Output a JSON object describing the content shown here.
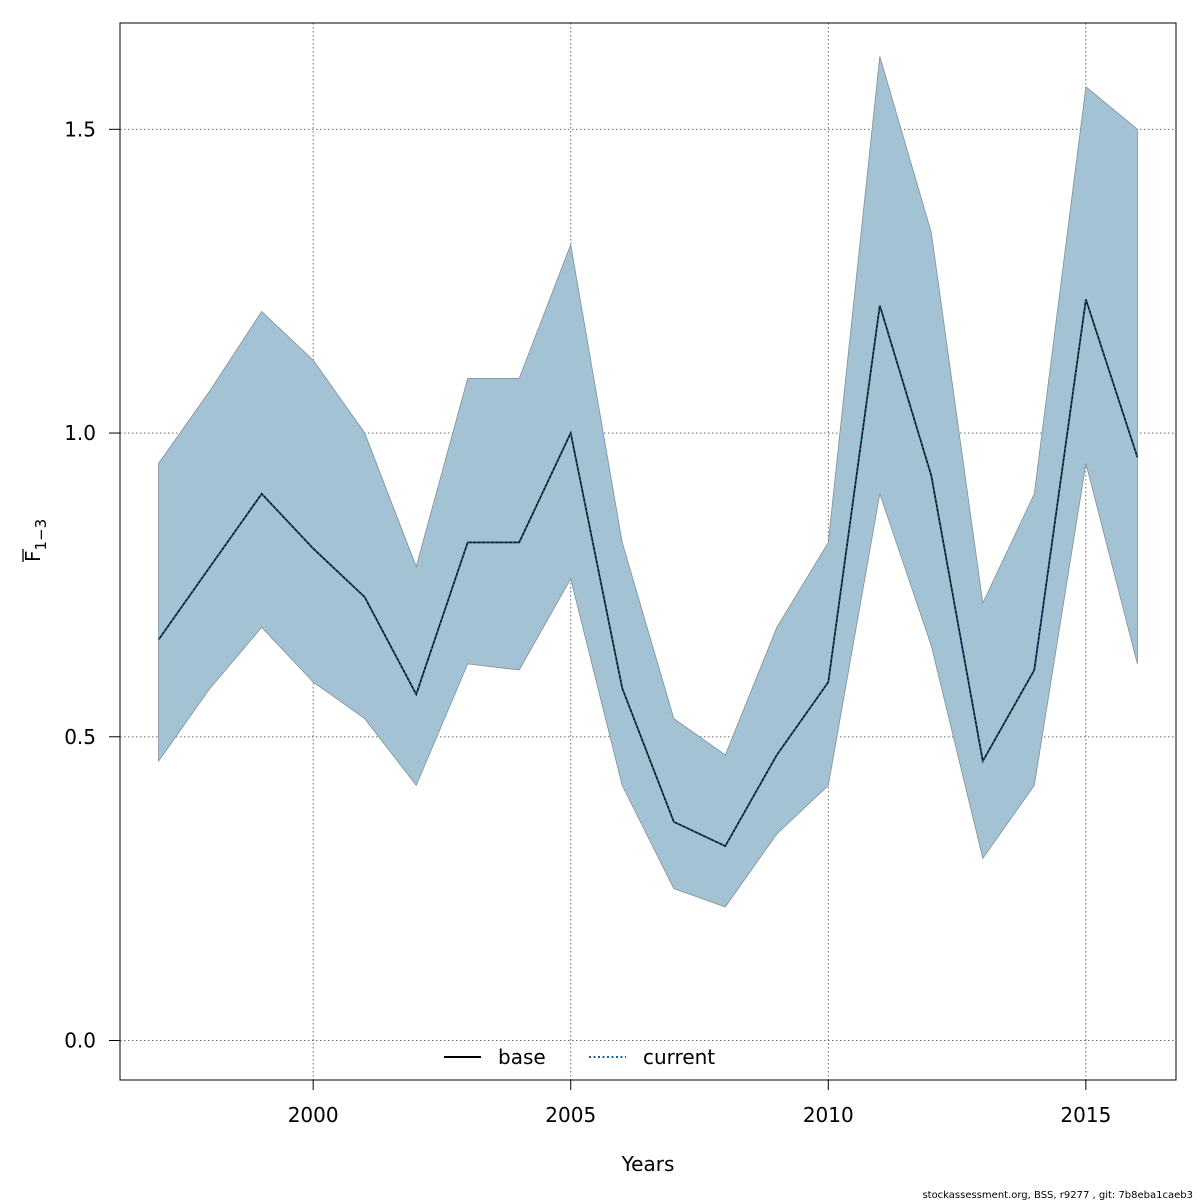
{
  "chart_data": {
    "type": "line",
    "xlabel": "Years",
    "ylabel": "F",
    "ylabel_subscript": "1−3",
    "xlim": [
      1996.25,
      2016.75
    ],
    "ylim": [
      -0.065,
      1.675
    ],
    "x_ticks": [
      2000,
      2005,
      2010,
      2015
    ],
    "x_tick_labels": [
      "2000",
      "2005",
      "2010",
      "2015"
    ],
    "y_ticks": [
      0.0,
      0.5,
      1.0,
      1.5
    ],
    "y_tick_labels": [
      "0.0",
      "0.5",
      "1.0",
      "1.5"
    ],
    "grid": true,
    "legend_position": "bottom-center",
    "x": [
      1997,
      1998,
      1999,
      2000,
      2001,
      2002,
      2003,
      2004,
      2005,
      2006,
      2007,
      2008,
      2009,
      2010,
      2011,
      2012,
      2013,
      2014,
      2015,
      2016
    ],
    "band": {
      "color": "#a3c3d4",
      "stroke": "#7f8f96",
      "upper": [
        0.95,
        1.07,
        1.2,
        1.12,
        1.0,
        0.78,
        1.09,
        1.09,
        1.31,
        0.82,
        0.53,
        0.47,
        0.68,
        0.82,
        1.62,
        1.33,
        0.72,
        0.9,
        1.57,
        1.5
      ],
      "lower": [
        0.46,
        0.58,
        0.68,
        0.59,
        0.53,
        0.42,
        0.62,
        0.61,
        0.76,
        0.42,
        0.25,
        0.22,
        0.34,
        0.42,
        0.9,
        0.65,
        0.3,
        0.42,
        0.95,
        0.62
      ]
    },
    "series": [
      {
        "name": "base",
        "color": "#000000",
        "dash": "solid",
        "values": [
          0.66,
          0.78,
          0.9,
          0.81,
          0.73,
          0.57,
          0.82,
          0.82,
          1.0,
          0.58,
          0.36,
          0.32,
          0.47,
          0.59,
          1.21,
          0.93,
          0.46,
          0.61,
          1.22,
          0.96
        ]
      },
      {
        "name": "current",
        "color": "#1f5f8f",
        "dash": "dotted",
        "values": [
          0.66,
          0.78,
          0.9,
          0.81,
          0.73,
          0.57,
          0.82,
          0.82,
          1.0,
          0.58,
          0.36,
          0.32,
          0.47,
          0.59,
          1.21,
          0.93,
          0.46,
          0.61,
          1.22,
          0.96
        ]
      }
    ]
  },
  "footer": {
    "text": "stockassessment.org, BSS, r9277 , git: 7b8eba1caeb3"
  }
}
